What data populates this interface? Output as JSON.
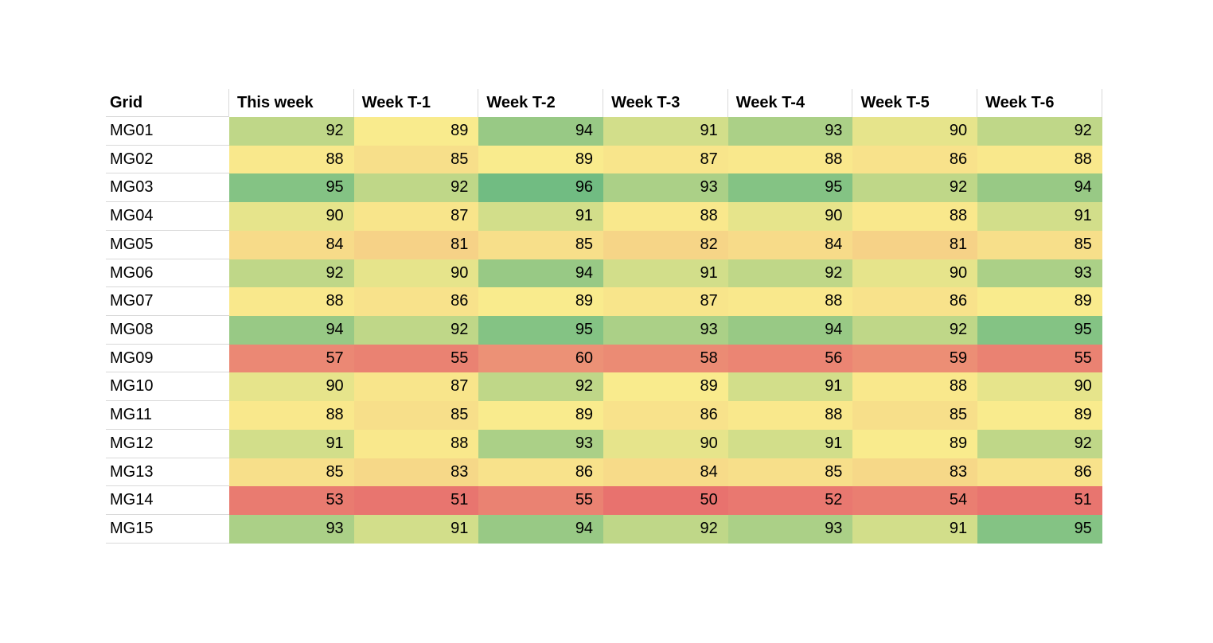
{
  "chart_data": {
    "type": "heatmap",
    "corner_label": "Grid",
    "columns": [
      "This week",
      "Week T-1",
      "Week T-2",
      "Week T-3",
      "Week T-4",
      "Week T-5",
      "Week T-6"
    ],
    "rows": [
      {
        "label": "MG01",
        "values": [
          92,
          89,
          94,
          91,
          93,
          90,
          92
        ]
      },
      {
        "label": "MG02",
        "values": [
          88,
          85,
          89,
          87,
          88,
          86,
          88
        ]
      },
      {
        "label": "MG03",
        "values": [
          95,
          92,
          96,
          93,
          95,
          92,
          94
        ]
      },
      {
        "label": "MG04",
        "values": [
          90,
          87,
          91,
          88,
          90,
          88,
          91
        ]
      },
      {
        "label": "MG05",
        "values": [
          84,
          81,
          85,
          82,
          84,
          81,
          85
        ]
      },
      {
        "label": "MG06",
        "values": [
          92,
          90,
          94,
          91,
          92,
          90,
          93
        ]
      },
      {
        "label": "MG07",
        "values": [
          88,
          86,
          89,
          87,
          88,
          86,
          89
        ]
      },
      {
        "label": "MG08",
        "values": [
          94,
          92,
          95,
          93,
          94,
          92,
          95
        ]
      },
      {
        "label": "MG09",
        "values": [
          57,
          55,
          60,
          58,
          56,
          59,
          55
        ]
      },
      {
        "label": "MG10",
        "values": [
          90,
          87,
          92,
          89,
          91,
          88,
          90
        ]
      },
      {
        "label": "MG11",
        "values": [
          88,
          85,
          89,
          86,
          88,
          85,
          89
        ]
      },
      {
        "label": "MG12",
        "values": [
          91,
          88,
          93,
          90,
          91,
          89,
          92
        ]
      },
      {
        "label": "MG13",
        "values": [
          85,
          83,
          86,
          84,
          85,
          83,
          86
        ]
      },
      {
        "label": "MG14",
        "values": [
          53,
          51,
          55,
          50,
          52,
          54,
          51
        ]
      },
      {
        "label": "MG15",
        "values": [
          93,
          91,
          94,
          92,
          93,
          91,
          95
        ]
      }
    ],
    "value_range": [
      50,
      96
    ],
    "color_scale": {
      "description": "3-color scale red-yellow-green",
      "min": {
        "value": 50,
        "color": "#E8726E"
      },
      "mid": {
        "value": 89,
        "color": "#F9EB8D"
      },
      "max": {
        "value": 96,
        "color": "#71BC82"
      }
    },
    "text_color": "#000000",
    "gridline_color": "#D9D9D9",
    "legend_position": "none",
    "grid": false
  }
}
